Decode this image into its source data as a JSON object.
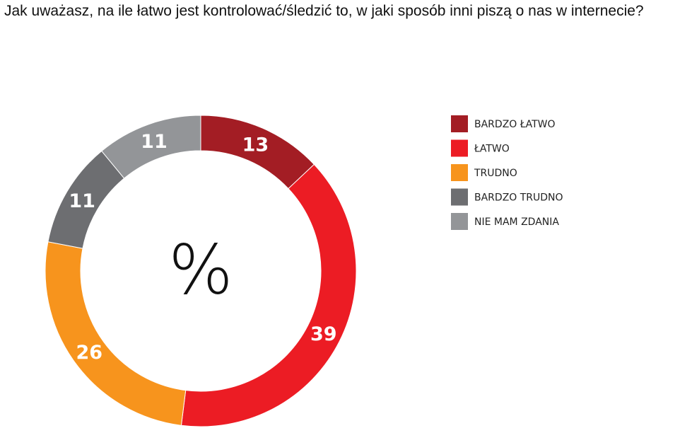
{
  "chart_data": {
    "type": "donut",
    "title": "Jak uważasz, na ile łatwo jest kontrolować/śledzić to, w jaki sposób inni piszą o nas w internecie?",
    "center_label": "%",
    "categories": [
      "BARDZO ŁATWO",
      "ŁATWO",
      "TRUDNO",
      "BARDZO TRUDNO",
      "NIE MAM ZDANIA"
    ],
    "values": [
      13,
      39,
      26,
      11,
      11
    ],
    "colors": [
      "#a31d24",
      "#ec1c24",
      "#f7941d",
      "#6d6e71",
      "#939598"
    ],
    "legend": "right"
  }
}
